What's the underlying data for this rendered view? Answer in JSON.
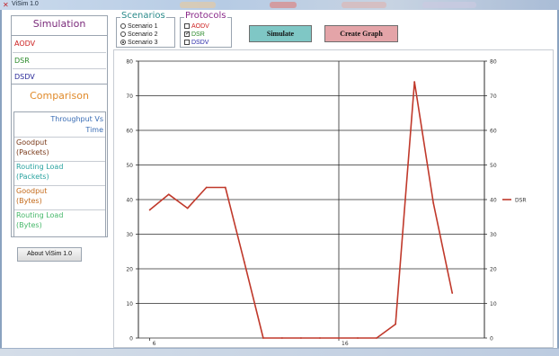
{
  "window": {
    "title": "ViSim 1.0"
  },
  "sidebar": {
    "simulation_heading": "Simulation",
    "simulation_items": [
      {
        "label": "AODV",
        "color": "#cc1f1f"
      },
      {
        "label": "DSR",
        "color": "#2a8a2a"
      },
      {
        "label": "DSDV",
        "color": "#2a2a99"
      }
    ],
    "comparison_heading": "Comparison",
    "comparison_items": [
      {
        "line1": "Throughput Vs",
        "line2": "Time",
        "color": "#3a6db5"
      },
      {
        "line1": "Goodput",
        "line2": "(Packets)",
        "color": "#7a3a1a"
      },
      {
        "line1": "Routing Load",
        "line2": "(Packets)",
        "color": "#2aa3a0"
      },
      {
        "line1": "Goodput",
        "line2": "(Bytes)",
        "color": "#c46a1a"
      },
      {
        "line1": "Routing Load",
        "line2": "(Bytes)",
        "color": "#46b86a"
      }
    ],
    "about_label": "About ViSim 1.0"
  },
  "scenarios": {
    "legend": "Scenarios",
    "legend_color": "#2a8a8a",
    "options": [
      {
        "label": "Scenario 1",
        "selected": false
      },
      {
        "label": "Scenario 2",
        "selected": false
      },
      {
        "label": "Scenario 3",
        "selected": true
      }
    ]
  },
  "protocols": {
    "legend": "Protocols",
    "legend_color": "#8a2a8a",
    "options": [
      {
        "label": "AODV",
        "checked": false,
        "color": "#cc1f1f"
      },
      {
        "label": "DSR",
        "checked": true,
        "color": "#2a8a2a"
      },
      {
        "label": "DSDV",
        "checked": false,
        "color": "#2a2aa9"
      }
    ]
  },
  "actions": {
    "simulate_label": "Simulate",
    "create_graph_label": "Create Graph"
  },
  "chart_data": {
    "type": "line",
    "title": "",
    "xlabel": "",
    "ylabel": "",
    "x_ticks": [
      "6",
      "16"
    ],
    "y_ticks": [
      0,
      10,
      20,
      30,
      40,
      50,
      60,
      70,
      80
    ],
    "ylim": [
      0,
      80
    ],
    "xlim": [
      5.4,
      23.7
    ],
    "grid": true,
    "legend_position": "right",
    "series": [
      {
        "name": "DSR",
        "color": "#c0392b",
        "x": [
          6,
          7,
          8,
          9,
          10,
          11,
          12,
          13,
          14,
          15,
          16,
          17,
          18,
          19,
          20,
          21,
          22
        ],
        "values": [
          37,
          41.5,
          37.5,
          43.5,
          43.5,
          22,
          0,
          0,
          0,
          0,
          0,
          0,
          0,
          4,
          74,
          39,
          13
        ]
      }
    ]
  }
}
